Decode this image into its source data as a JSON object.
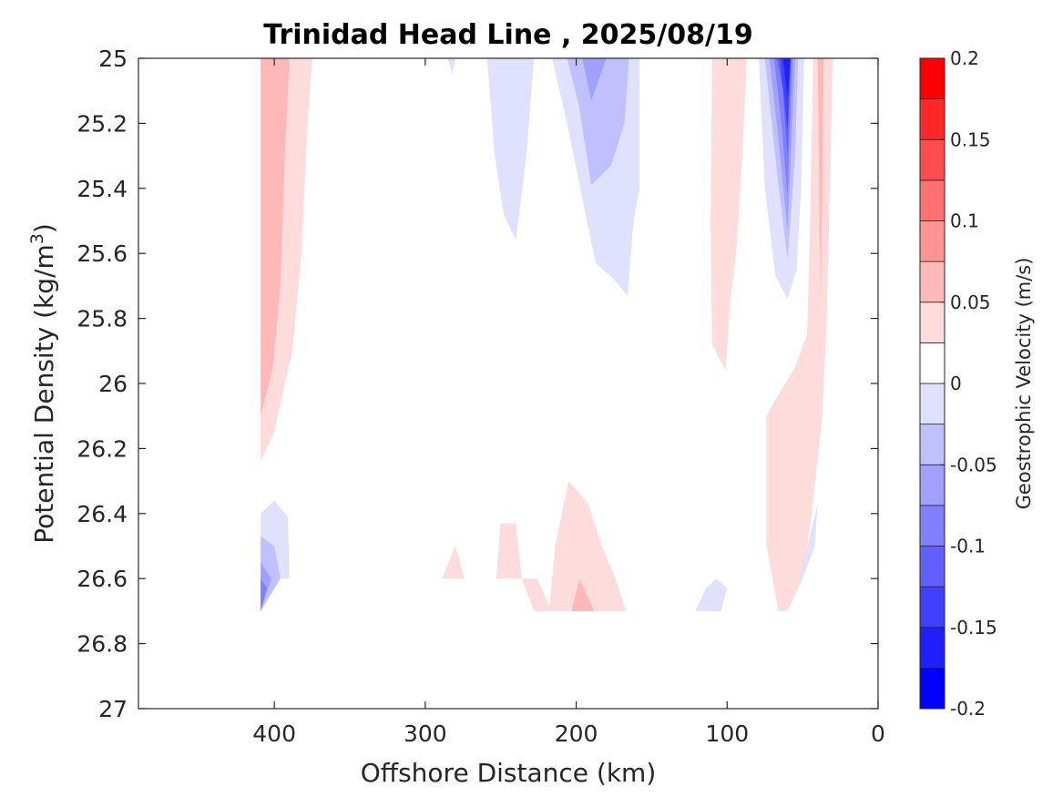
{
  "chart_data": {
    "type": "contourf",
    "title": "Trinidad Head Line , 2025/08/19",
    "xlabel": "Offshore Distance (km)",
    "ylabel": "Potential Density (kg/m",
    "ylabel_superscript": "3",
    "ylabel_suffix": ")",
    "xlim": [
      490,
      0
    ],
    "x_reversed": true,
    "ylim": [
      25,
      27
    ],
    "y_reversed": true,
    "x_ticks": [
      400,
      300,
      200,
      100,
      0
    ],
    "x_tick_labels": [
      "400",
      "300",
      "200",
      "100",
      "0"
    ],
    "y_ticks": [
      25,
      25.2,
      25.4,
      25.6,
      25.8,
      26,
      26.2,
      26.4,
      26.6,
      26.8,
      27
    ],
    "y_tick_labels": [
      "25",
      "25.2",
      "25.4",
      "25.6",
      "25.8",
      "26",
      "26.2",
      "26.4",
      "26.6",
      "26.8",
      "27"
    ],
    "grid": false,
    "colorbar": {
      "label": "Geostrophic Velocity (m/s)",
      "range": [
        -0.2,
        0.2
      ],
      "levels": [
        -0.2,
        -0.175,
        -0.15,
        -0.125,
        -0.1,
        -0.075,
        -0.05,
        -0.025,
        0,
        0.025,
        0.05,
        0.075,
        0.1,
        0.125,
        0.15,
        0.175,
        0.2
      ],
      "tick_values": [
        0.2,
        0.15,
        0.1,
        0.05,
        0,
        -0.05,
        -0.1,
        -0.15,
        -0.2
      ],
      "tick_labels": [
        "0.2",
        "0.15",
        "0.1",
        "0.05",
        "0",
        "-0.05",
        "-0.1",
        "-0.15",
        "-0.2"
      ],
      "colors": [
        "#0000ff",
        "#2020ff",
        "#4040ff",
        "#6060ff",
        "#8080ff",
        "#a0a0ff",
        "#c0c0ff",
        "#e0e0ff",
        "#ffffff",
        "#ffffff",
        "#ffdcdc",
        "#ffb8b8",
        "#ff9494",
        "#ff7070",
        "#ff4c4c",
        "#ff2828",
        "#ff0000"
      ],
      "placement": "right"
    },
    "regions": [
      {
        "name": "offshore-jet-outer",
        "level": 0.025,
        "color": "#ffdcdc",
        "points": [
          [
            409,
            25
          ],
          [
            375,
            25
          ],
          [
            378,
            25.2
          ],
          [
            382,
            25.6
          ],
          [
            388,
            25.9
          ],
          [
            393,
            26
          ],
          [
            400,
            26.15
          ],
          [
            409,
            26.24
          ]
        ]
      },
      {
        "name": "offshore-jet-core",
        "level": 0.05,
        "color": "#ffb8b8",
        "points": [
          [
            409,
            25
          ],
          [
            390,
            25
          ],
          [
            393,
            25.3
          ],
          [
            396,
            25.7
          ],
          [
            401,
            25.95
          ],
          [
            409,
            26.1
          ]
        ]
      },
      {
        "name": "deep-west-negative-1",
        "level": -0.025,
        "color": "#e0e0ff",
        "points": [
          [
            409,
            26.4
          ],
          [
            400,
            26.36
          ],
          [
            391,
            26.41
          ],
          [
            390,
            26.6
          ],
          [
            409,
            26.6
          ],
          [
            409,
            26.7
          ]
        ]
      },
      {
        "name": "deep-west-negative-2",
        "level": -0.05,
        "color": "#c0c0ff",
        "points": [
          [
            409,
            26.47
          ],
          [
            400,
            26.5
          ],
          [
            396,
            26.6
          ],
          [
            409,
            26.7
          ]
        ]
      },
      {
        "name": "deep-west-negative-3",
        "level": -0.075,
        "color": "#a0a0ff",
        "points": [
          [
            409,
            26.55
          ],
          [
            402,
            26.6
          ],
          [
            409,
            26.7
          ]
        ]
      },
      {
        "name": "deep-west-negative-4",
        "level": -0.1,
        "color": "#8080ff",
        "points": [
          [
            409,
            26.6
          ],
          [
            405,
            26.63
          ],
          [
            409,
            26.7
          ]
        ]
      },
      {
        "name": "small-negative-top",
        "level": -0.025,
        "color": "#e0e0ff",
        "points": [
          [
            285,
            25
          ],
          [
            280,
            25
          ],
          [
            282,
            25.05
          ]
        ]
      },
      {
        "name": "mid-negative-a",
        "level": -0.025,
        "color": "#e0e0ff",
        "points": [
          [
            259,
            25
          ],
          [
            228,
            25
          ],
          [
            233,
            25.3
          ],
          [
            240,
            25.56
          ],
          [
            248,
            25.48
          ],
          [
            254,
            25.3
          ]
        ]
      },
      {
        "name": "mid-negative-b-outer",
        "level": -0.025,
        "color": "#e0e0ff",
        "points": [
          [
            216,
            25
          ],
          [
            158,
            25
          ],
          [
            158,
            25.4
          ],
          [
            162,
            25.5
          ],
          [
            166,
            25.73
          ],
          [
            175,
            25.68
          ],
          [
            187,
            25.63
          ],
          [
            196,
            25.43
          ],
          [
            206,
            25.2
          ]
        ]
      },
      {
        "name": "mid-negative-b-mid",
        "level": -0.05,
        "color": "#c0c0ff",
        "points": [
          [
            206,
            25
          ],
          [
            165,
            25
          ],
          [
            168,
            25.2
          ],
          [
            177,
            25.33
          ],
          [
            190,
            25.39
          ],
          [
            198,
            25.15
          ]
        ]
      },
      {
        "name": "mid-negative-b-core",
        "level": -0.075,
        "color": "#a0a0ff",
        "points": [
          [
            196,
            25
          ],
          [
            180,
            25
          ],
          [
            190,
            25.13
          ]
        ]
      },
      {
        "name": "coastal-negative-1",
        "level": -0.025,
        "color": "#e0e0ff",
        "points": [
          [
            79,
            25
          ],
          [
            49,
            25
          ],
          [
            51,
            25.4
          ],
          [
            54,
            25.65
          ],
          [
            60,
            25.74
          ],
          [
            68,
            25.67
          ],
          [
            75,
            25.4
          ]
        ]
      },
      {
        "name": "coastal-negative-2",
        "level": -0.05,
        "color": "#c0c0ff",
        "points": [
          [
            75,
            25
          ],
          [
            53,
            25
          ],
          [
            55,
            25.3
          ],
          [
            60,
            25.62
          ],
          [
            67,
            25.35
          ]
        ]
      },
      {
        "name": "coastal-negative-3",
        "level": -0.075,
        "color": "#a0a0ff",
        "points": [
          [
            72,
            25
          ],
          [
            55,
            25
          ],
          [
            60,
            25.53
          ],
          [
            66,
            25.25
          ]
        ]
      },
      {
        "name": "coastal-negative-4",
        "level": -0.1,
        "color": "#8080ff",
        "points": [
          [
            69,
            25
          ],
          [
            57,
            25
          ],
          [
            60,
            25.43
          ],
          [
            64,
            25.2
          ]
        ]
      },
      {
        "name": "coastal-negative-5",
        "level": -0.125,
        "color": "#6060ff",
        "points": [
          [
            67,
            25
          ],
          [
            58,
            25
          ],
          [
            60,
            25.3
          ],
          [
            63,
            25.1
          ]
        ]
      },
      {
        "name": "coastal-negative-6",
        "level": -0.15,
        "color": "#4040ff",
        "points": [
          [
            65,
            25
          ],
          [
            58,
            25
          ],
          [
            60,
            25.22
          ]
        ]
      },
      {
        "name": "coastal-negative-7",
        "level": -0.175,
        "color": "#2020ff",
        "points": [
          [
            63,
            25
          ],
          [
            58,
            25
          ],
          [
            60,
            25.12
          ]
        ]
      },
      {
        "name": "shelf-positive-upper",
        "level": 0.025,
        "color": "#ffdcdc",
        "points": [
          [
            110,
            25
          ],
          [
            87,
            25
          ],
          [
            90,
            25.3
          ],
          [
            94,
            25.6
          ],
          [
            98,
            25.75
          ],
          [
            101,
            25.96
          ],
          [
            110,
            25.88
          ],
          [
            111,
            25.5
          ]
        ]
      },
      {
        "name": "nearshore-positive-outer",
        "level": 0.025,
        "color": "#ffdcdc",
        "points": [
          [
            43,
            25
          ],
          [
            30,
            25
          ],
          [
            32,
            25.4
          ],
          [
            34,
            25.8
          ],
          [
            37,
            26.1
          ],
          [
            44,
            26.4
          ],
          [
            50,
            26.6
          ],
          [
            60,
            26.7
          ],
          [
            66,
            26.7
          ],
          [
            74,
            26.5
          ],
          [
            74,
            26.1
          ],
          [
            68,
            26.05
          ],
          [
            55,
            25.95
          ],
          [
            47,
            25.85
          ],
          [
            45,
            25.5
          ]
        ]
      },
      {
        "name": "nearshore-positive-core",
        "level": 0.05,
        "color": "#ffb8b8",
        "points": [
          [
            40,
            25
          ],
          [
            36,
            25
          ],
          [
            37,
            25.4
          ],
          [
            38,
            25.75
          ],
          [
            39,
            25.4
          ]
        ]
      },
      {
        "name": "nearshore-negative-sliver",
        "level": -0.025,
        "color": "#e0e0ff",
        "points": [
          [
            40,
            26.37
          ],
          [
            42,
            26.5
          ],
          [
            50,
            26.6
          ],
          [
            52,
            26.6
          ]
        ]
      },
      {
        "name": "shelf-negative-deep",
        "level": -0.025,
        "color": "#e0e0ff",
        "points": [
          [
            121,
            26.7
          ],
          [
            104,
            26.7
          ],
          [
            100,
            26.63
          ],
          [
            107,
            26.6
          ],
          [
            114,
            26.63
          ]
        ]
      },
      {
        "name": "deep-positive-small-a",
        "level": 0.025,
        "color": "#ffdcdc",
        "points": [
          [
            289,
            26.6
          ],
          [
            274,
            26.6
          ],
          [
            280,
            26.5
          ]
        ]
      },
      {
        "name": "deep-positive-small-b",
        "level": 0.025,
        "color": "#ffdcdc",
        "points": [
          [
            253,
            26.6
          ],
          [
            250,
            26.43
          ],
          [
            240,
            26.43
          ],
          [
            236,
            26.6
          ],
          [
            228,
            26.7
          ],
          [
            216,
            26.7
          ],
          [
            226,
            26.6
          ],
          [
            253,
            26.6
          ]
        ]
      },
      {
        "name": "deep-positive-c-outer",
        "level": 0.025,
        "color": "#ffdcdc",
        "points": [
          [
            218,
            26.7
          ],
          [
            214,
            26.5
          ],
          [
            205,
            26.3
          ],
          [
            192,
            26.37
          ],
          [
            183,
            26.5
          ],
          [
            174,
            26.6
          ],
          [
            167,
            26.7
          ]
        ]
      },
      {
        "name": "deep-positive-c-core",
        "level": 0.05,
        "color": "#ffb8b8",
        "points": [
          [
            203,
            26.7
          ],
          [
            198,
            26.6
          ],
          [
            188,
            26.7
          ]
        ]
      }
    ]
  }
}
